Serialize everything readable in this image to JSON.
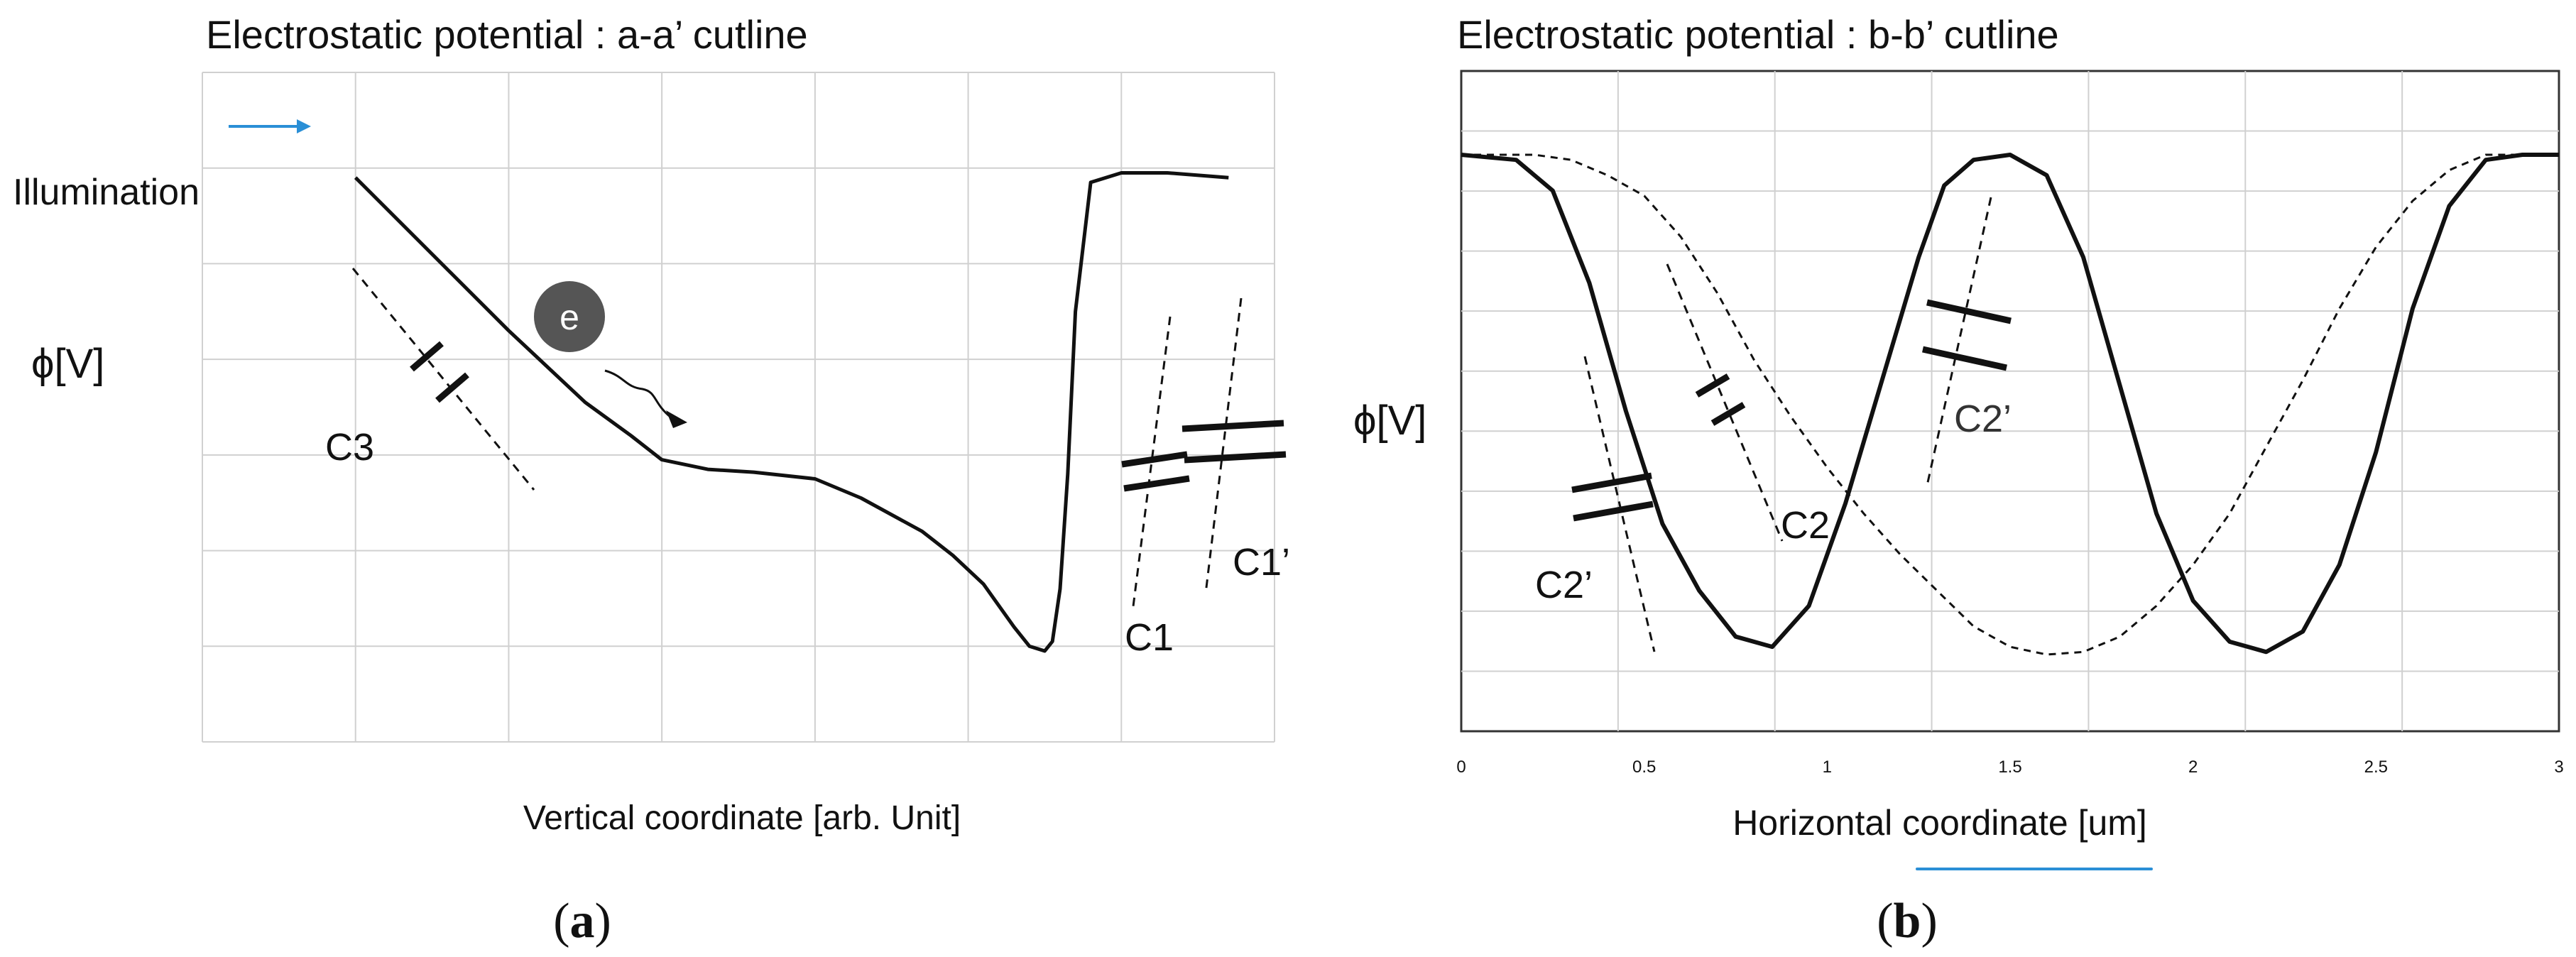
{
  "panel_a": {
    "title": "Electrostatic potential : a-a’ cutline",
    "illumination_label": "Illumination",
    "ylabel": "ϕ[V]",
    "xlabel": "Vertical coordinate [arb. Unit]",
    "electron_label": "e",
    "cap_labels": {
      "c3": "C3",
      "c1": "C1",
      "c1p": "C1’"
    },
    "caption_open": "(",
    "caption_letter": "a",
    "caption_close": ")",
    "colors": {
      "arrow": "#2a8fd6",
      "electron": "#555555",
      "grid": "#d0d0d0",
      "curve": "#111111"
    }
  },
  "panel_b": {
    "title": "Electrostatic potential : b-b’ cutline",
    "ylabel": "ϕ[V]",
    "xlabel": "Horizontal coordinate [um]",
    "cap_labels": {
      "c2p_left": "C2’",
      "c2": "C2",
      "c2p_right": "C2’"
    },
    "caption_open": "(",
    "caption_letter": "b",
    "caption_close": ")",
    "colors": {
      "grid": "#d0d0d0",
      "curve": "#111111",
      "accent": "#2a8fd6"
    }
  },
  "chart_data": [
    {
      "type": "line",
      "title": "Electrostatic potential : a-a’ cutline",
      "xlabel": "Vertical coordinate [arb. Unit]",
      "ylabel": "ϕ[V]",
      "xlim": [
        0,
        7
      ],
      "ylim": [
        0,
        7
      ],
      "grid": true,
      "series": [
        {
          "x": [
            1.0,
            1.5,
            2.0,
            2.5,
            2.8,
            3.0,
            3.3,
            3.6,
            4.0,
            4.3,
            4.7,
            4.9,
            5.1,
            5.3,
            5.4,
            5.5,
            5.55,
            5.6,
            5.65,
            5.7,
            5.8,
            6.0,
            6.3,
            6.7
          ],
          "y": [
            5.9,
            5.1,
            4.3,
            3.55,
            3.2,
            2.95,
            2.85,
            2.82,
            2.75,
            2.55,
            2.2,
            1.95,
            1.65,
            1.2,
            1.0,
            0.95,
            1.05,
            1.6,
            2.8,
            4.5,
            5.85,
            5.95,
            5.95,
            5.9
          ]
        }
      ]
    },
    {
      "type": "line",
      "title": "Electrostatic potential : b-b’ cutline",
      "xlabel": "Horizontal coordinate [um]",
      "ylabel": "ϕ[V]",
      "xlim": [
        0,
        3
      ],
      "ylim": [
        0,
        10
      ],
      "x_ticks": [
        "0",
        "0.5",
        "1",
        "1.5",
        "2",
        "2.5",
        "3"
      ],
      "grid": true,
      "series": [
        {
          "x": [
            0,
            0.15,
            0.25,
            0.35,
            0.45,
            0.55,
            0.65,
            0.75,
            0.85,
            0.95,
            1.05,
            1.15,
            1.25,
            1.32,
            1.4,
            1.5,
            1.6,
            1.7,
            1.8,
            1.9,
            2.0,
            2.1,
            2.2,
            2.3,
            2.4,
            2.5,
            2.6,
            2.7,
            2.8,
            2.9,
            3.0
          ],
          "y": [
            10,
            9.9,
            9.3,
            7.5,
            5.0,
            2.8,
            1.5,
            0.6,
            0.4,
            1.2,
            3.2,
            5.6,
            8.0,
            9.4,
            9.9,
            10,
            9.6,
            8.0,
            5.5,
            3.0,
            1.3,
            0.5,
            0.3,
            0.7,
            2.0,
            4.2,
            7.0,
            9.0,
            9.9,
            10,
            10
          ]
        },
        {
          "x": [
            0,
            0.2,
            0.3,
            0.4,
            0.5,
            0.6,
            0.7,
            0.8,
            0.9,
            1.0,
            1.1,
            1.2,
            1.3,
            1.4,
            1.5,
            1.6,
            1.7,
            1.8,
            1.9,
            2.0,
            2.1,
            2.2,
            2.3,
            2.4,
            2.5,
            2.6,
            2.7,
            2.8,
            3.0
          ],
          "y": [
            10,
            10,
            9.9,
            9.6,
            9.2,
            8.4,
            7.3,
            6.0,
            4.9,
            3.9,
            3.0,
            2.2,
            1.5,
            0.8,
            0.4,
            0.25,
            0.3,
            0.6,
            1.2,
            2.0,
            3.0,
            4.3,
            5.6,
            7.0,
            8.2,
            9.1,
            9.7,
            10,
            10
          ]
        }
      ]
    }
  ]
}
